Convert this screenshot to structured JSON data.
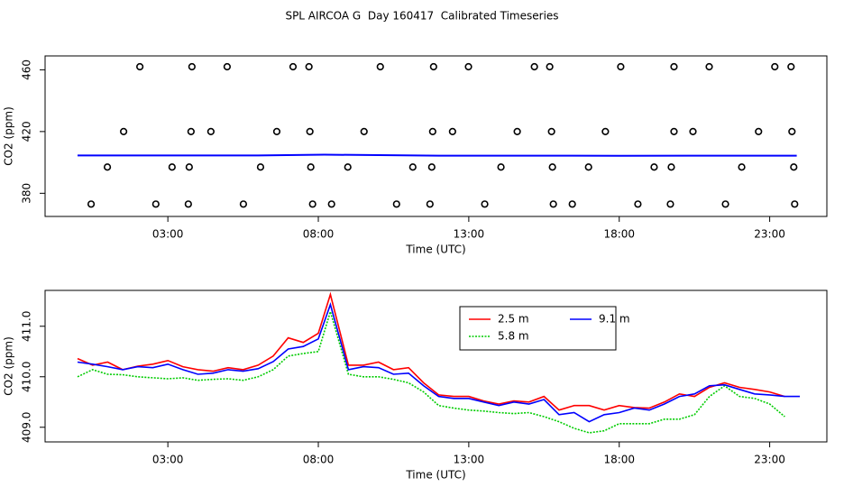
{
  "chart_data": [
    {
      "type": "scatter",
      "title": "SPL AIRCOA G  Day 160417  Calibrated Timeseries",
      "xlabel": "Time (UTC)",
      "ylabel": "CO2 (ppm)",
      "xlim": [
        -1.08,
        24.9
      ],
      "ylim": [
        365,
        469
      ],
      "xticks": [
        {
          "value": 3,
          "label": "03:00"
        },
        {
          "value": 8,
          "label": "08:00"
        },
        {
          "value": 13,
          "label": "13:00"
        },
        {
          "value": 18,
          "label": "18:00"
        },
        {
          "value": 23,
          "label": "23:00"
        }
      ],
      "yticks": [
        380,
        420,
        460
      ],
      "color": "#000000",
      "x": [
        2.07,
        3.8,
        4.97,
        7.16,
        7.69,
        10.06,
        11.83,
        12.99,
        15.18,
        15.69,
        18.05,
        19.82,
        20.99,
        23.17,
        23.71,
        1.53,
        3.77,
        4.43,
        6.62,
        7.72,
        9.52,
        11.8,
        12.46,
        14.61,
        15.75,
        17.54,
        19.82,
        20.45,
        22.63,
        23.74,
        0.99,
        3.14,
        3.71,
        6.08,
        7.75,
        8.98,
        11.14,
        11.77,
        14.07,
        15.78,
        16.98,
        19.16,
        19.73,
        22.07,
        23.8,
        0.45,
        2.6,
        3.68,
        5.51,
        7.81,
        8.44,
        10.6,
        11.71,
        13.53,
        15.81,
        16.44,
        18.62,
        19.7,
        21.53,
        23.83
      ],
      "values": [
        462,
        462,
        462,
        462,
        462,
        462,
        462,
        462,
        462,
        462,
        462,
        462,
        462,
        462,
        462,
        420,
        420,
        420,
        420,
        420,
        420,
        420,
        420,
        420,
        420,
        420,
        420,
        420,
        420,
        420,
        397,
        397,
        397,
        397,
        397,
        397,
        397,
        397,
        397,
        397,
        397,
        397,
        397,
        397,
        397,
        373,
        373,
        373,
        373,
        373,
        373,
        373,
        373,
        373,
        373,
        373,
        373,
        373,
        373,
        373
      ],
      "line": {
        "color": "#0000ff",
        "x": [
          0,
          6,
          8.2,
          12,
          18,
          23.9
        ],
        "values": [
          404.5,
          404.5,
          405,
          404.4,
          404.3,
          404.4
        ]
      }
    },
    {
      "type": "line",
      "xlabel": "Time (UTC)",
      "ylabel": "CO2 (ppm)",
      "xlim": [
        -1.08,
        24.9
      ],
      "ylim": [
        408.71,
        411.71
      ],
      "xticks": [
        {
          "value": 3,
          "label": "03:00"
        },
        {
          "value": 8,
          "label": "08:00"
        },
        {
          "value": 13,
          "label": "13:00"
        },
        {
          "value": 18,
          "label": "18:00"
        },
        {
          "value": 23,
          "label": "23:00"
        }
      ],
      "yticks": [
        {
          "value": 409,
          "label": "409.0"
        },
        {
          "value": 410,
          "label": "410.0"
        },
        {
          "value": 411,
          "label": "411.0"
        }
      ],
      "x": [
        0,
        0.5,
        1,
        1.5,
        2,
        2.5,
        3,
        3.5,
        4,
        4.5,
        5,
        5.5,
        6,
        6.5,
        7,
        7.5,
        8,
        8.4,
        9,
        9.5,
        10,
        10.5,
        11,
        11.5,
        12,
        12.5,
        13,
        13.5,
        14,
        14.5,
        15,
        15.5,
        16,
        16.5,
        17,
        17.5,
        18,
        18.5,
        19,
        19.5,
        20,
        20.5,
        21,
        21.5,
        22,
        22.5,
        23,
        23.5,
        24
      ],
      "series": [
        {
          "name": "2.5 m",
          "color": "#ff0000",
          "style": "solid",
          "values": [
            410.36,
            410.23,
            410.29,
            410.14,
            410.21,
            410.25,
            410.32,
            410.2,
            410.14,
            410.11,
            410.18,
            410.14,
            410.23,
            410.41,
            410.77,
            410.68,
            410.86,
            411.63,
            410.23,
            410.23,
            410.29,
            410.14,
            410.18,
            409.88,
            409.64,
            409.61,
            409.61,
            409.52,
            409.46,
            409.52,
            409.5,
            409.61,
            409.34,
            409.43,
            409.43,
            409.34,
            409.43,
            409.39,
            409.38,
            409.5,
            409.66,
            409.61,
            409.79,
            409.88,
            409.79,
            409.75,
            409.7,
            409.61,
            null
          ]
        },
        {
          "name": "5.8 m",
          "color": "#00cc00",
          "style": "dotted",
          "values": [
            410.0,
            410.14,
            410.05,
            410.04,
            410.0,
            409.98,
            409.96,
            409.98,
            409.93,
            409.95,
            409.96,
            409.93,
            410.0,
            410.14,
            410.41,
            410.46,
            410.5,
            411.29,
            410.05,
            410.0,
            410.0,
            409.95,
            409.88,
            409.7,
            409.43,
            409.38,
            409.34,
            409.32,
            409.29,
            409.27,
            409.29,
            409.21,
            409.11,
            408.98,
            408.89,
            408.93,
            409.07,
            409.07,
            409.07,
            409.16,
            409.16,
            409.25,
            409.61,
            409.82,
            409.61,
            409.57,
            409.46,
            409.21,
            null
          ]
        },
        {
          "name": "9.1 m",
          "color": "#0000ff",
          "style": "solid",
          "values": [
            410.29,
            410.25,
            410.2,
            410.14,
            410.2,
            410.18,
            410.25,
            410.14,
            410.05,
            410.07,
            410.14,
            410.11,
            410.16,
            410.3,
            410.55,
            410.6,
            410.75,
            411.43,
            410.14,
            410.2,
            410.18,
            410.05,
            410.07,
            409.82,
            409.61,
            409.57,
            409.57,
            409.5,
            409.43,
            409.5,
            409.46,
            409.55,
            409.25,
            409.29,
            409.11,
            409.25,
            409.29,
            409.38,
            409.34,
            409.46,
            409.61,
            409.66,
            409.82,
            409.84,
            409.75,
            409.66,
            409.64,
            409.61,
            409.61
          ]
        }
      ]
    }
  ]
}
